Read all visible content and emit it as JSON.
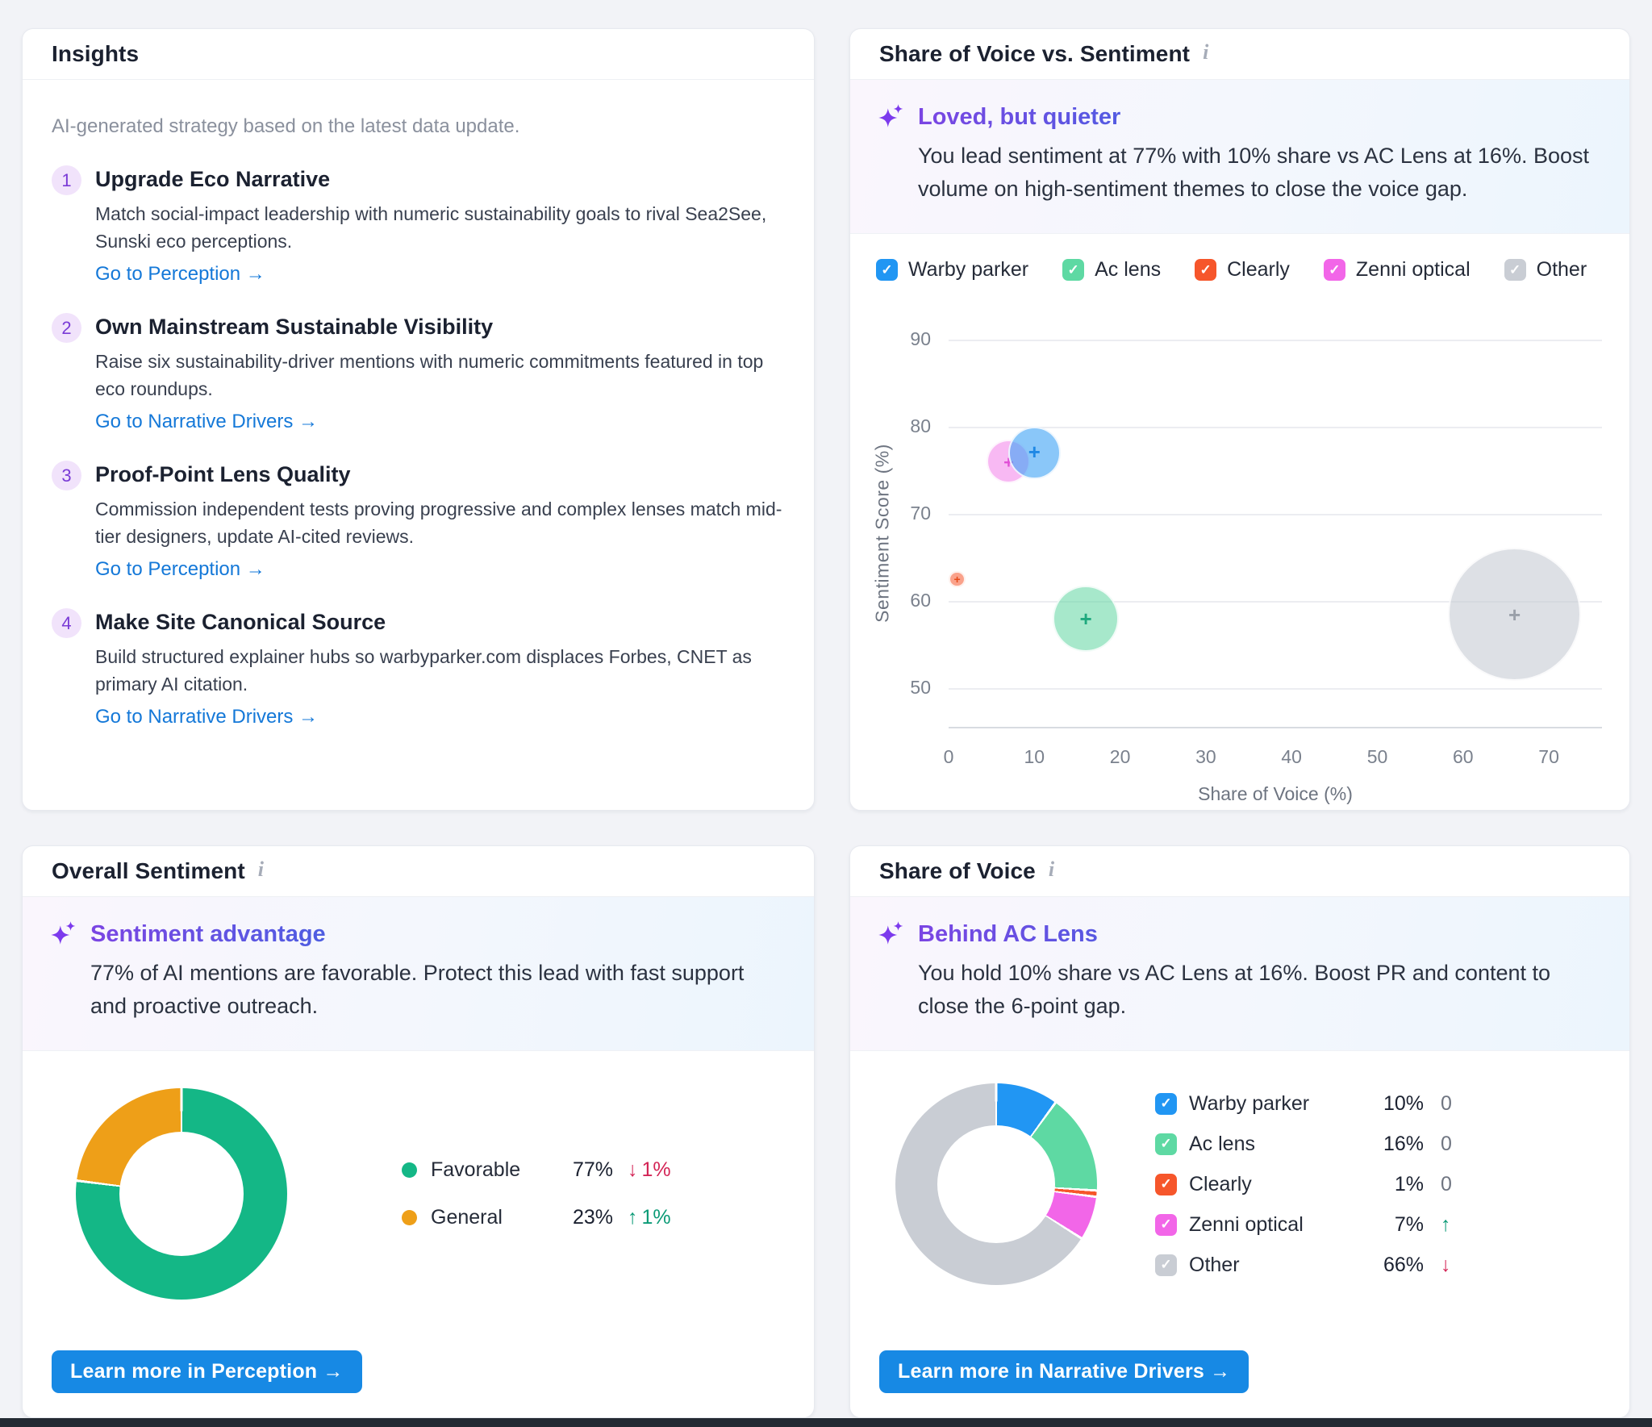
{
  "theme": {
    "check_glyph": "✓",
    "background": "#F2F3F7",
    "card_border": "#E7E9EF",
    "link_blue": "#1478D8",
    "button_blue": "#1789E4",
    "insight_title_gradient": [
      "#7B45E3",
      "#1D78DF"
    ],
    "sparkle_purple": "#7C3AED",
    "change_up_green": "#0C9B77",
    "change_down_red": "#D32556"
  },
  "cards": {
    "insights": {
      "title": "Insights",
      "intro": "AI-generated strategy based on the latest data update.",
      "items": [
        {
          "num": "1",
          "title": "Upgrade Eco Narrative",
          "body": "Match social-impact leadership with numeric sustainability goals to rival Sea2See, Sunski eco perceptions.",
          "link": "Go to Perception →"
        },
        {
          "num": "2",
          "title": "Own Mainstream Sustainable Visibility",
          "body": "Raise six sustainability-driver mentions with numeric commitments featured in top eco roundups.",
          "link": "Go to Narrative Drivers →"
        },
        {
          "num": "3",
          "title": "Proof-Point Lens Quality",
          "body": "Commission independent tests proving progressive and complex lenses match mid-tier designers, update AI-cited reviews.",
          "link": "Go to Perception →"
        },
        {
          "num": "4",
          "title": "Make Site Canonical Source",
          "body": "Build structured explainer hubs so warbyparker.com displaces Forbes, CNET as primary AI citation.",
          "link": "Go to Narrative Drivers →"
        }
      ]
    },
    "sov_sentiment": {
      "title": "Share of Voice vs. Sentiment",
      "info_glyph": "i",
      "insight": {
        "title": "Loved, but quieter",
        "body": "You lead sentiment at 77% with 10% share vs AC Lens at 16%. Boost volume on high-sentiment themes to close the voice gap."
      },
      "chart_data": {
        "type": "bubble",
        "xlabel": "Share of Voice (%)",
        "ylabel": "Sentiment Score (%)",
        "x_ticks": [
          0,
          10,
          20,
          30,
          40,
          50,
          60,
          70
        ],
        "y_ticks": [
          90,
          80,
          70,
          60,
          50
        ],
        "x_range": [
          0,
          76.2
        ],
        "y_range": [
          45.6,
          90
        ],
        "grid": true,
        "legend_position": "top",
        "legend": [
          {
            "label": "Warby parker",
            "color": "#2196F3",
            "checked": true
          },
          {
            "label": "Ac lens",
            "color": "#5ED9A3",
            "checked": true
          },
          {
            "label": "Clearly",
            "color": "#F6562B",
            "checked": true
          },
          {
            "label": "Zenni optical",
            "color": "#F266E8",
            "checked": true
          },
          {
            "label": "Other",
            "color": "#C9CDD4",
            "checked": true
          }
        ],
        "series": [
          {
            "name": "Other",
            "x": 66,
            "y": 58.5,
            "size": 66,
            "fill": "rgba(199,203,211,0.6)",
            "marker": "#9AA0A9"
          },
          {
            "name": "Ac lens",
            "x": 16,
            "y": 58,
            "size": 16,
            "fill": "rgba(95,214,161,0.55)",
            "marker": "#1FA97E"
          },
          {
            "name": "Zenni optical",
            "x": 7,
            "y": 76,
            "size": 7,
            "fill": "rgba(240,100,229,0.45)",
            "marker": "#E14FD6"
          },
          {
            "name": "Warby parker",
            "x": 10,
            "y": 77,
            "size": 10,
            "fill": "rgba(66,165,245,0.62)",
            "marker": "#1E88E5"
          },
          {
            "name": "Clearly",
            "x": 1,
            "y": 62.5,
            "size": 1,
            "fill": "rgba(246,86,43,0.55)",
            "marker": "#E64A19"
          }
        ]
      }
    },
    "overall_sentiment": {
      "title": "Overall Sentiment",
      "info_glyph": "i",
      "insight": {
        "title": "Sentiment advantage",
        "body": "77% of AI mentions are favorable. Protect this lead with fast support and proactive outreach."
      },
      "button_label": "Learn more in Perception →",
      "chart_data": {
        "type": "pie",
        "slices": [
          {
            "label": "Favorable",
            "value": 77,
            "value_label": "77%",
            "color": "#14B786",
            "change": {
              "glyph": "↓",
              "text": "1%",
              "color": "#D32556"
            }
          },
          {
            "label": "General",
            "value": 23,
            "value_label": "23%",
            "color": "#EE9F18",
            "change": {
              "glyph": "↑",
              "text": "1%",
              "color": "#0C9B77"
            }
          }
        ]
      }
    },
    "share_of_voice": {
      "title": "Share of Voice",
      "info_glyph": "i",
      "insight": {
        "title": "Behind AC Lens",
        "body": "You hold 10% share vs AC Lens at 16%. Boost PR and content to close the 6-point gap."
      },
      "button_label": "Learn more in Narrative Drivers →",
      "chart_data": {
        "type": "pie",
        "slices": [
          {
            "label": "Warby parker",
            "value": 10,
            "value_label": "10%",
            "color": "#2196F3",
            "change": {
              "glyph": "0",
              "color": "#6F7581"
            }
          },
          {
            "label": "Ac lens",
            "value": 16,
            "value_label": "16%",
            "color": "#5ED9A3",
            "change": {
              "glyph": "0",
              "color": "#6F7581"
            }
          },
          {
            "label": "Clearly",
            "value": 1,
            "value_label": "1%",
            "color": "#F6562B",
            "change": {
              "glyph": "0",
              "color": "#6F7581"
            }
          },
          {
            "label": "Zenni optical",
            "value": 7,
            "value_label": "7%",
            "color": "#F266E8",
            "change": {
              "glyph": "↑",
              "color": "#0C9B77"
            }
          },
          {
            "label": "Other",
            "value": 66,
            "value_label": "66%",
            "color": "#C9CDD4",
            "change": {
              "glyph": "↓",
              "color": "#D32556"
            }
          }
        ]
      }
    }
  },
  "chart_data": [
    {
      "type": "bubble",
      "title": "Share of Voice vs. Sentiment",
      "xlabel": "Share of Voice (%)",
      "ylabel": "Sentiment Score (%)",
      "x_ticks": [
        0,
        10,
        20,
        30,
        40,
        50,
        60,
        70
      ],
      "y_ticks": [
        90,
        80,
        70,
        60,
        50
      ],
      "x_range": [
        0,
        76.2
      ],
      "y_range": [
        45.6,
        90
      ],
      "grid": true,
      "series": [
        {
          "name": "Warby parker",
          "x": 10,
          "y": 77,
          "size": 10
        },
        {
          "name": "Ac lens",
          "x": 16,
          "y": 58,
          "size": 16
        },
        {
          "name": "Clearly",
          "x": 1,
          "y": 62.5,
          "size": 1
        },
        {
          "name": "Zenni optical",
          "x": 7,
          "y": 76,
          "size": 7
        },
        {
          "name": "Other",
          "x": 66,
          "y": 58.5,
          "size": 66
        }
      ]
    },
    {
      "type": "pie",
      "title": "Overall Sentiment",
      "categories": [
        "Favorable",
        "General"
      ],
      "values": [
        77,
        23
      ],
      "changes": [
        "-1%",
        "+1%"
      ]
    },
    {
      "type": "pie",
      "title": "Share of Voice",
      "categories": [
        "Warby parker",
        "Ac lens",
        "Clearly",
        "Zenni optical",
        "Other"
      ],
      "values": [
        10,
        16,
        1,
        7,
        66
      ],
      "changes": [
        "0",
        "0",
        "0",
        "up",
        "down"
      ]
    }
  ]
}
